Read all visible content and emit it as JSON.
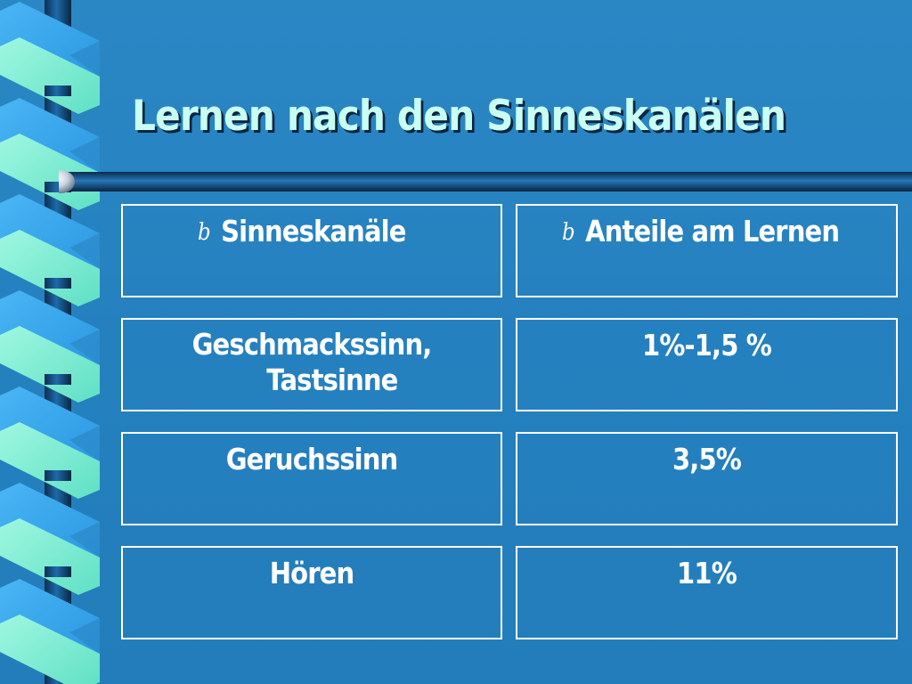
{
  "slide": {
    "title": "Lernen nach den Sinneskanälen",
    "header": {
      "col1": "Sinneskanäle",
      "col2": "Anteile am Lernen",
      "bullet_glyph": "b"
    },
    "rows": [
      {
        "sense_line1": "Geschmackssinn,",
        "sense_line2": "Tastsinne",
        "share": "1%-1,5 %"
      },
      {
        "sense": "Geruchssinn",
        "share": "3,5%"
      },
      {
        "sense": "Hören",
        "share": "11%"
      }
    ]
  },
  "colors": {
    "background": "#2581bf",
    "title_text": "#c9fff2",
    "ribbon_light": "#7ff2d6",
    "ribbon_blue": "#39a8f0",
    "pole_dark": "#0d3a66",
    "cell_border": "#ffffff"
  },
  "icons": {
    "bullet": "bullet-b-icon",
    "ribbon": "decorative-ribbon",
    "rule": "title-rule"
  }
}
